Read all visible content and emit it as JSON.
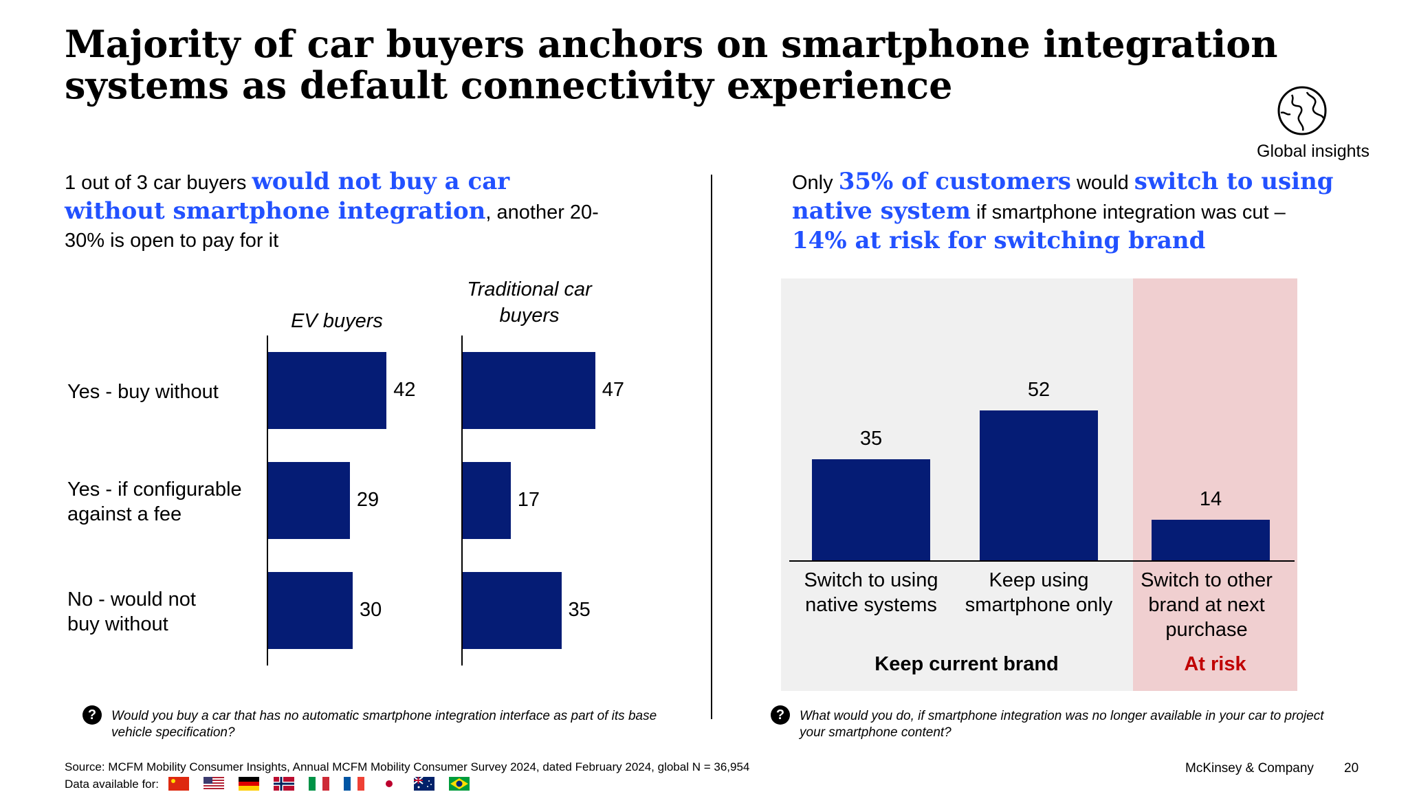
{
  "title": "Majority of car buyers anchors on smartphone integration systems as default connectivity experience",
  "badge": {
    "label": "Global insights",
    "icon": "globe-icon"
  },
  "left": {
    "subhead": {
      "p1": "1 out of 3 car buyers ",
      "hl1": "would not buy a car without smartphone integration",
      "p2": ", another 20-30% is open to pay for it"
    },
    "question": "Would you buy a car that has no automatic smartphone integration interface as part of its base vehicle specification?"
  },
  "right": {
    "subhead": {
      "p1": "Only ",
      "hl1": "35% of customers",
      "p2": " would ",
      "hl2": "switch to using native system",
      "p3": " if smartphone integration was cut – ",
      "hl3": "14% at risk for switching brand"
    },
    "group_keep": "Keep current brand",
    "group_risk": "At risk",
    "question": "What would you do, if smartphone integration was no longer available in your car to project your smartphone content?"
  },
  "chart_data": [
    {
      "type": "bar",
      "orientation": "horizontal",
      "categories": [
        "Yes - buy without",
        "Yes - if configurable against a fee",
        "No - would not buy without"
      ],
      "series": [
        {
          "name": "EV buyers",
          "values": [
            42,
            29,
            30
          ]
        },
        {
          "name": "Traditional car buyers",
          "values": [
            47,
            17,
            35
          ]
        }
      ],
      "bar_color": "#051c75"
    },
    {
      "type": "bar",
      "orientation": "vertical",
      "categories": [
        "Switch to using native systems",
        "Keep using smartphone only",
        "Switch to other brand at next purchase"
      ],
      "values": [
        35,
        52,
        14
      ],
      "groups": [
        {
          "label": "Keep current brand",
          "categories": [
            0,
            1
          ],
          "color": "#f0f0f0"
        },
        {
          "label": "At risk",
          "categories": [
            2
          ],
          "color": "#f0cfd0",
          "label_color": "#c00000"
        }
      ],
      "bar_color": "#051c75"
    }
  ],
  "footer": {
    "source": "Source: MCFM Mobility Consumer Insights, Annual MCFM Mobility Consumer Survey 2024, dated February 2024, global N = 36,954",
    "data_available": "Data available for:",
    "flags": [
      "china-flag",
      "usa-flag",
      "germany-flag",
      "norway-flag",
      "italy-flag",
      "france-flag",
      "japan-flag",
      "australia-flag",
      "brazil-flag"
    ],
    "company": "McKinsey & Company",
    "page": "20"
  },
  "colors": {
    "accent": "#2251ff",
    "bar": "#051c75",
    "risk": "#c00000"
  }
}
